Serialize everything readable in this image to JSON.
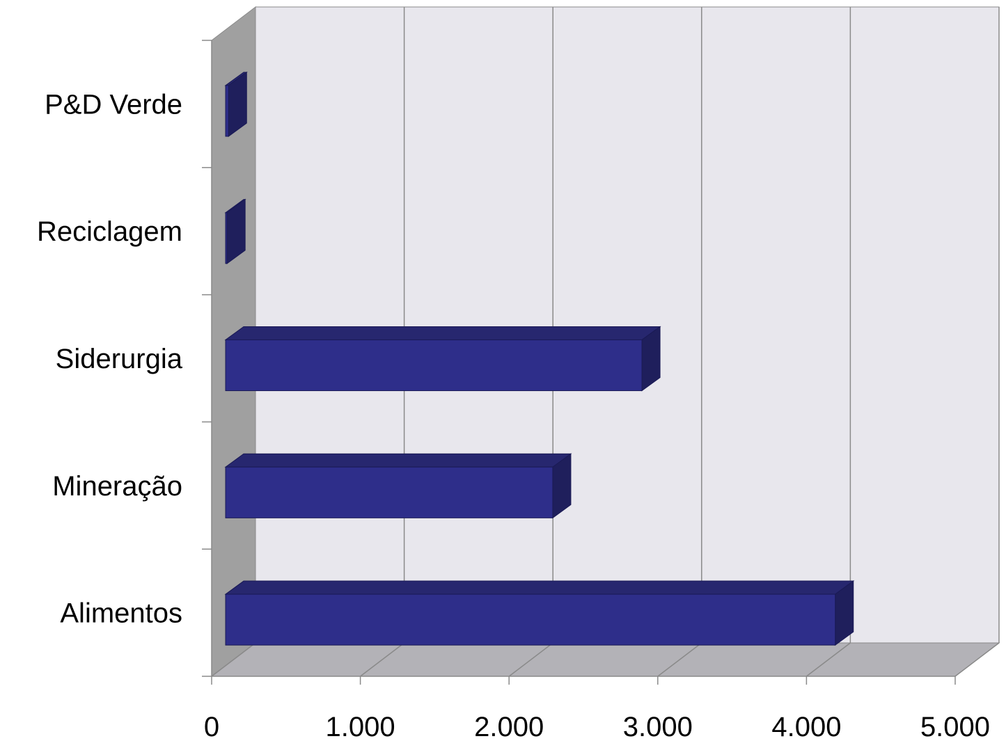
{
  "chart_data": {
    "type": "bar",
    "orientation": "horizontal",
    "style_3d": true,
    "title": "",
    "xlabel": "",
    "ylabel": "",
    "categories": [
      "P&D Verde",
      "Reciclagem",
      "Siderurgia",
      "Mineração",
      "Alimentos"
    ],
    "values": [
      20,
      10,
      2800,
      2200,
      4100
    ],
    "xlim": [
      0,
      5000
    ],
    "xticks": [
      "0",
      "1.000",
      "2.000",
      "3.000",
      "4.000",
      "5.000"
    ],
    "xtick_values": [
      0,
      1000,
      2000,
      3000,
      4000,
      5000
    ],
    "grid": true,
    "legend": "none",
    "colors": {
      "bar_front": "#2e2e8a",
      "bar_top": "#27276f",
      "bar_side": "#1f1f5c",
      "back_wall": "#e8e7ed",
      "side_wall": "#a0a0a0",
      "floor": "#b3b2b7",
      "gridline": "#8a8a8a"
    }
  }
}
